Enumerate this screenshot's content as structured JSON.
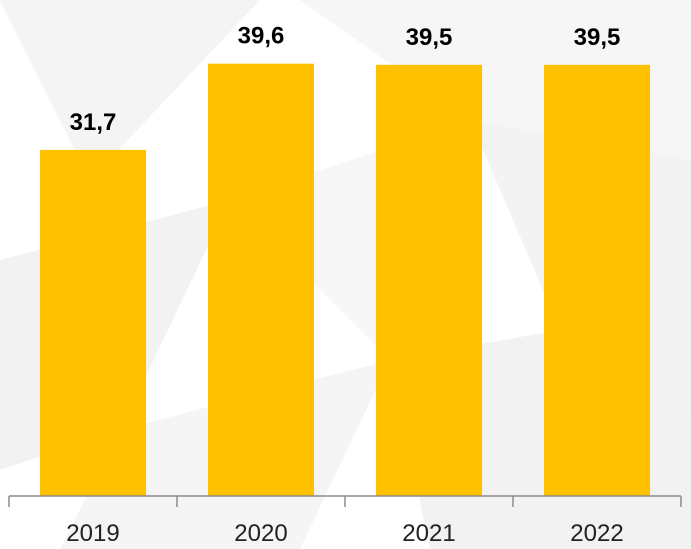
{
  "chart_data": {
    "type": "bar",
    "categories": [
      "2019",
      "2020",
      "2021",
      "2022"
    ],
    "values": [
      31.7,
      39.6,
      39.5,
      39.5
    ],
    "value_labels": [
      "31,7",
      "39,6",
      "39,5",
      "39,5"
    ],
    "title": "",
    "xlabel": "",
    "ylabel": "",
    "ylim": [
      0,
      44.7
    ],
    "grid": false,
    "legend": "none"
  },
  "colors": {
    "bar": "#FFC000",
    "axis": "#8C8C8C",
    "background": "#FFFFFF",
    "background_shade": "#EFEFEF"
  }
}
